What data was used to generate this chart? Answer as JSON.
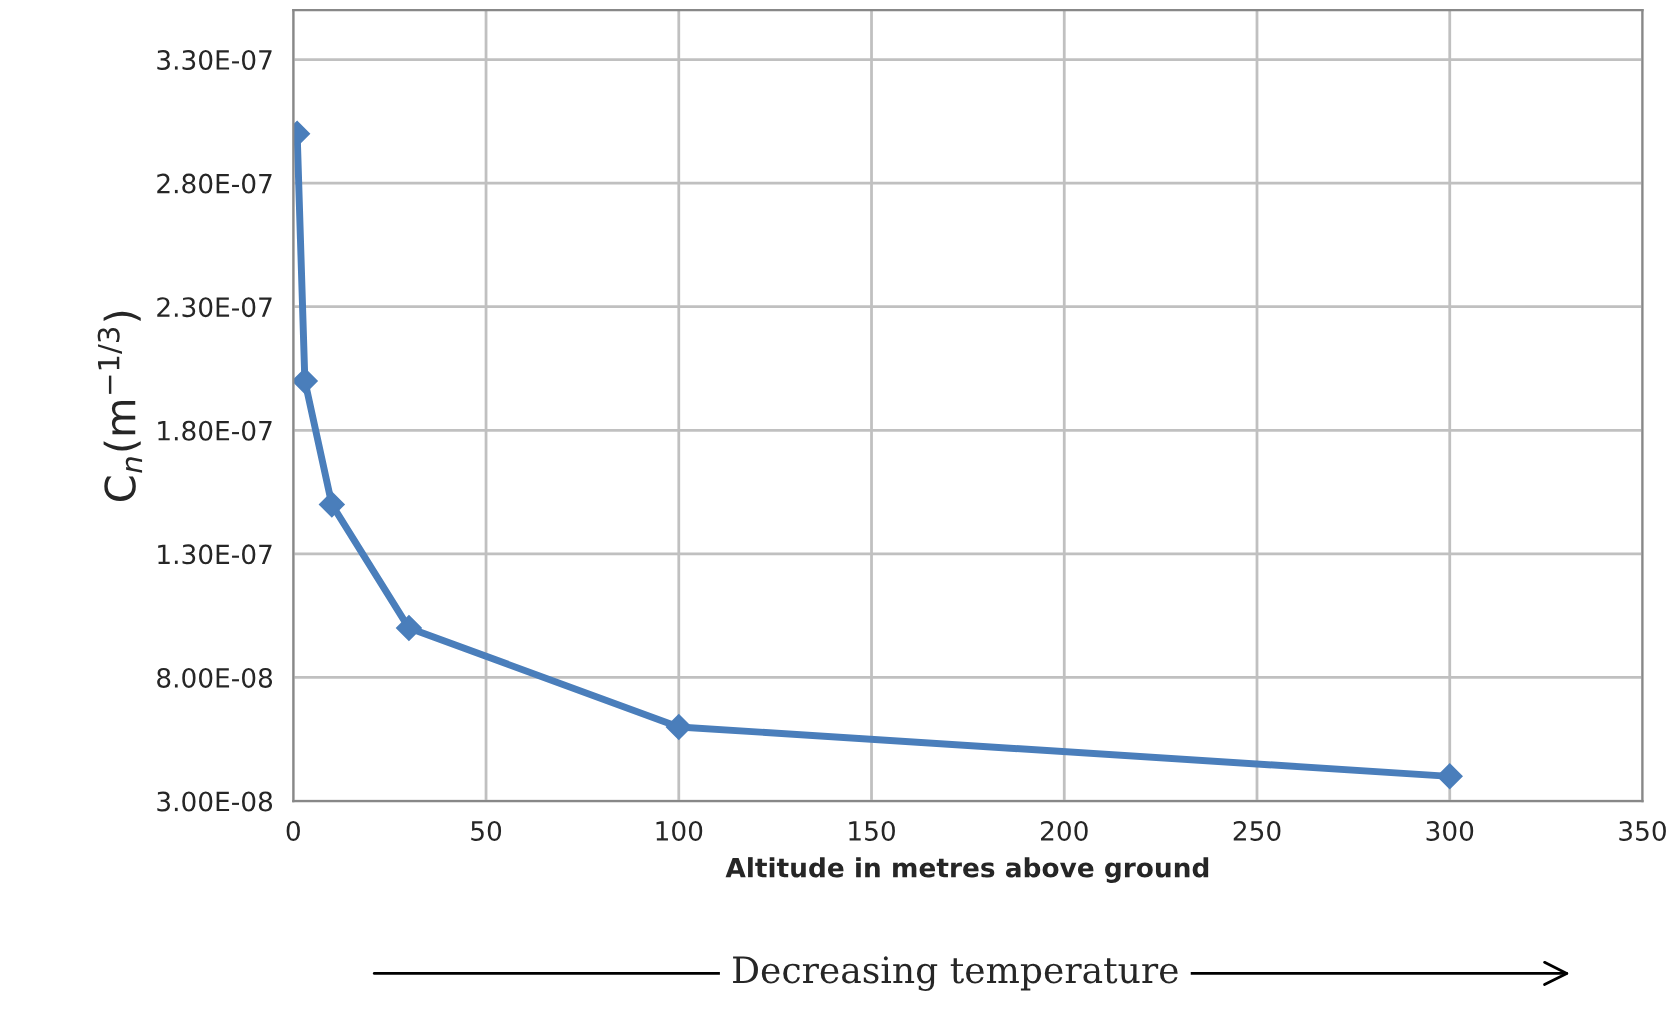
{
  "chart_data": {
    "type": "line",
    "xlabel": "Altitude in metres above ground",
    "ylabel": "C$_{n}$(m$^{−1/3}$)",
    "x": [
      1,
      3,
      10,
      30,
      100,
      300
    ],
    "series": [
      {
        "color": "#4a7ebb",
        "values": [
          3e-07,
          2e-07,
          1.5e-07,
          1e-07,
          6e-08,
          4e-08
        ]
      }
    ],
    "xlim": [
      0,
      350
    ],
    "xticks": [
      0,
      50,
      100,
      150,
      200,
      250,
      300,
      350
    ],
    "ylim": [
      3e-08,
      3.5e-07
    ],
    "yticks": [
      {
        "value": 3e-08,
        "label": "3.00E-08"
      },
      {
        "value": 8e-08,
        "label": "8.00E-08"
      },
      {
        "value": 1.3e-07,
        "label": "1.30E-07"
      },
      {
        "value": 1.8e-07,
        "label": "1.80E-07"
      },
      {
        "value": 2.3e-07,
        "label": "2.30E-07"
      },
      {
        "value": 2.8e-07,
        "label": "2.80E-07"
      },
      {
        "value": 3.3e-07,
        "label": "3.30E-07"
      }
    ],
    "grid": true,
    "marker": "diamond",
    "line_style": "solid",
    "legend": false,
    "annotations": [
      "Decreasing temperature"
    ]
  }
}
